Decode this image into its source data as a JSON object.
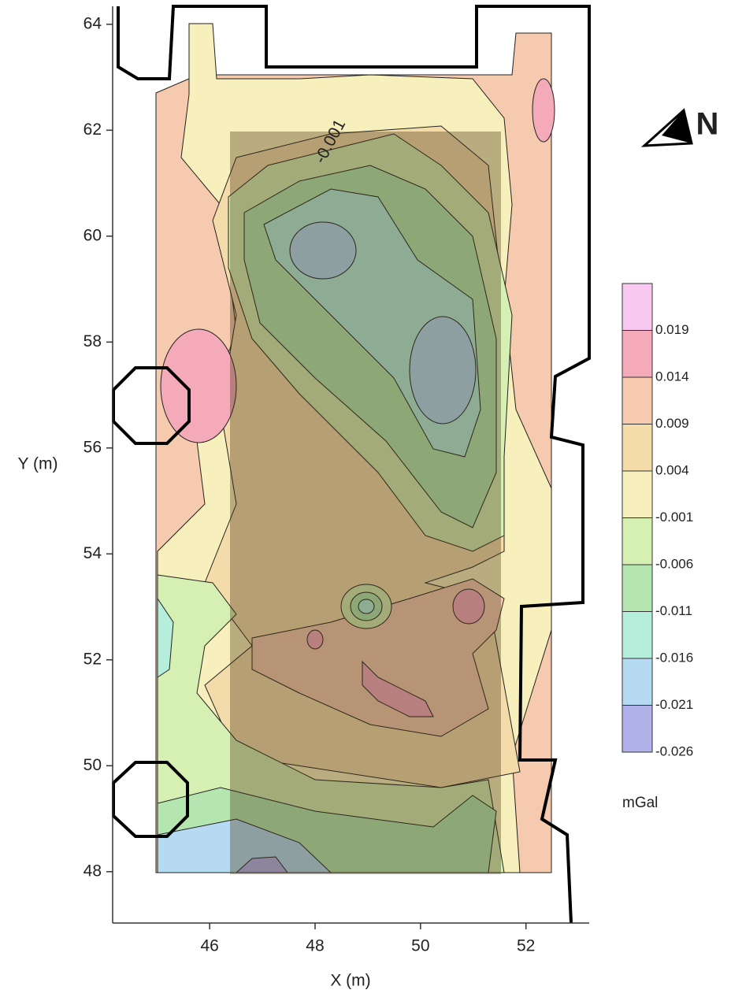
{
  "chart_data": {
    "type": "contour",
    "x_label": "X (m)",
    "y_label": "Y (m)",
    "xlim": [
      44.16,
      53.2
    ],
    "ylim": [
      47.03,
      64.34
    ],
    "xticks": [
      46,
      48,
      50,
      52
    ],
    "yticks": [
      48,
      50,
      52,
      54,
      56,
      58,
      60,
      62,
      64
    ],
    "annotation": "-0.001",
    "north_label": "N",
    "colorbar": {
      "unit": "mGal",
      "levels": [
        0.019,
        0.014,
        0.009,
        0.004,
        -0.001,
        -0.006,
        -0.011,
        -0.016,
        -0.021,
        -0.026
      ],
      "colors": [
        "#f8c8f0",
        "#f4aab8",
        "#f6caae",
        "#f3dcaa",
        "#f7f0bc",
        "#d6efb2",
        "#b6e6b0",
        "#b6eedc",
        "#b6daf2",
        "#b2b2ea"
      ]
    }
  }
}
